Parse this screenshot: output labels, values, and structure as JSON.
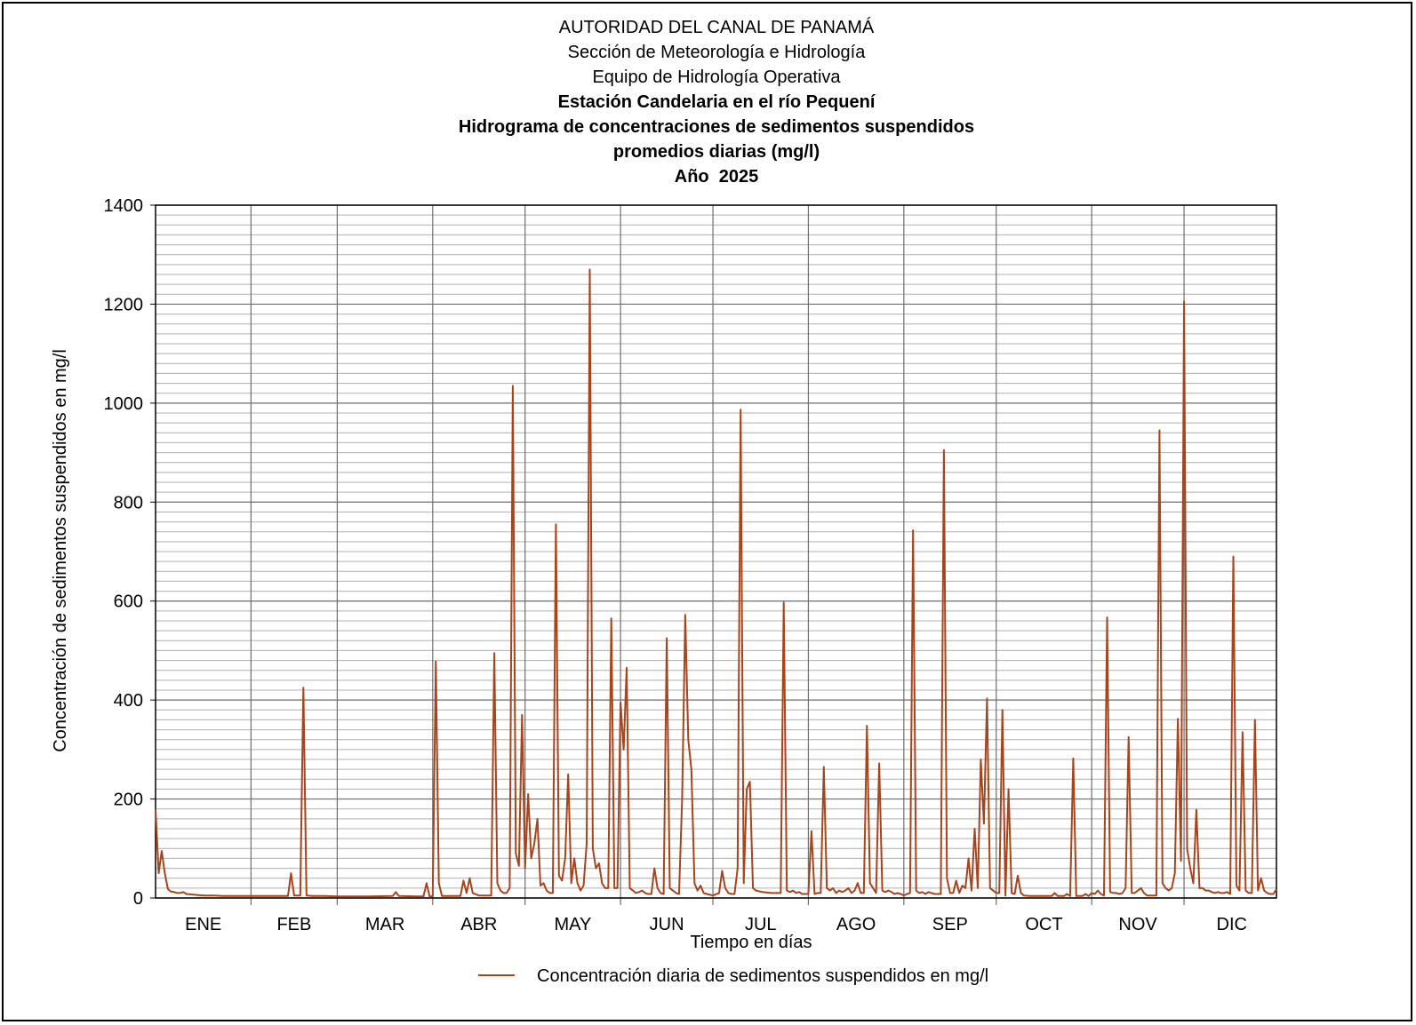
{
  "titles": [
    "AUTORIDAD DEL CANAL DE PANAMÁ",
    "Sección de Meteorología e Hidrología",
    "Equipo de Hidrología Operativa",
    "Estación Candelaria en el río Pequení",
    "Hidrograma de concentraciones de sedimentos suspendidos",
    "promedios diarias (mg/l)",
    "Año  2025"
  ],
  "chart_data": {
    "type": "line",
    "title": "Hidrograma de concentraciones de sedimentos suspendidos promedios diarias (mg/l)",
    "xlabel": "Tiempo en días",
    "ylabel": "Concentración de sedimentos suspendidos en mg/l",
    "ylim": [
      0,
      1400
    ],
    "xlim": [
      1,
      365
    ],
    "yticks": [
      0,
      200,
      400,
      600,
      800,
      1000,
      1200,
      1400
    ],
    "minor_grid_step": 20,
    "grid": true,
    "legend_position": "bottom-center",
    "month_labels": [
      "ENE",
      "FEB",
      "MAR",
      "ABR",
      "MAY",
      "JUN",
      "JUL",
      "AGO",
      "SEP",
      "OCT",
      "NOV",
      "DIC"
    ],
    "month_starts_day": [
      1,
      32,
      60,
      91,
      121,
      152,
      182,
      213,
      244,
      274,
      305,
      335
    ],
    "series": [
      {
        "name": "Concentración diaria de sedimentos suspendidos en mg/l",
        "color": "#a8441c",
        "points": [
          [
            1,
            180
          ],
          [
            2,
            50
          ],
          [
            3,
            95
          ],
          [
            4,
            50
          ],
          [
            5,
            18
          ],
          [
            6,
            13
          ],
          [
            7,
            12
          ],
          [
            8,
            10
          ],
          [
            9,
            10
          ],
          [
            10,
            12
          ],
          [
            11,
            8
          ],
          [
            13,
            7
          ],
          [
            15,
            6
          ],
          [
            17,
            5
          ],
          [
            20,
            5
          ],
          [
            23,
            4
          ],
          [
            26,
            4
          ],
          [
            30,
            4
          ],
          [
            35,
            4
          ],
          [
            40,
            4
          ],
          [
            44,
            4
          ],
          [
            45,
            50
          ],
          [
            46,
            5
          ],
          [
            47,
            5
          ],
          [
            48,
            5
          ],
          [
            49,
            425
          ],
          [
            50,
            5
          ],
          [
            52,
            4
          ],
          [
            56,
            4
          ],
          [
            60,
            3
          ],
          [
            66,
            3
          ],
          [
            70,
            3
          ],
          [
            78,
            4
          ],
          [
            79,
            12
          ],
          [
            80,
            4
          ],
          [
            86,
            3
          ],
          [
            88,
            3
          ],
          [
            89,
            30
          ],
          [
            90,
            3
          ],
          [
            91,
            3
          ],
          [
            92,
            478
          ],
          [
            93,
            30
          ],
          [
            94,
            4
          ],
          [
            96,
            4
          ],
          [
            98,
            4
          ],
          [
            100,
            4
          ],
          [
            101,
            35
          ],
          [
            102,
            10
          ],
          [
            103,
            40
          ],
          [
            104,
            10
          ],
          [
            106,
            5
          ],
          [
            108,
            5
          ],
          [
            110,
            5
          ],
          [
            111,
            495
          ],
          [
            112,
            30
          ],
          [
            113,
            15
          ],
          [
            114,
            10
          ],
          [
            115,
            10
          ],
          [
            116,
            20
          ],
          [
            117,
            1035
          ],
          [
            118,
            90
          ],
          [
            119,
            65
          ],
          [
            120,
            370
          ],
          [
            121,
            60
          ],
          [
            122,
            210
          ],
          [
            123,
            80
          ],
          [
            124,
            110
          ],
          [
            125,
            160
          ],
          [
            126,
            25
          ],
          [
            127,
            30
          ],
          [
            128,
            15
          ],
          [
            129,
            10
          ],
          [
            130,
            10
          ],
          [
            131,
            755
          ],
          [
            132,
            45
          ],
          [
            133,
            35
          ],
          [
            134,
            80
          ],
          [
            135,
            250
          ],
          [
            136,
            30
          ],
          [
            137,
            80
          ],
          [
            138,
            30
          ],
          [
            139,
            15
          ],
          [
            140,
            25
          ],
          [
            141,
            110
          ],
          [
            142,
            1270
          ],
          [
            143,
            100
          ],
          [
            144,
            60
          ],
          [
            145,
            70
          ],
          [
            146,
            30
          ],
          [
            147,
            20
          ],
          [
            148,
            20
          ],
          [
            149,
            565
          ],
          [
            150,
            20
          ],
          [
            151,
            20
          ],
          [
            152,
            395
          ],
          [
            153,
            300
          ],
          [
            154,
            465
          ],
          [
            155,
            20
          ],
          [
            156,
            15
          ],
          [
            157,
            10
          ],
          [
            158,
            12
          ],
          [
            159,
            15
          ],
          [
            160,
            10
          ],
          [
            161,
            8
          ],
          [
            162,
            8
          ],
          [
            163,
            60
          ],
          [
            164,
            20
          ],
          [
            165,
            10
          ],
          [
            166,
            8
          ],
          [
            167,
            525
          ],
          [
            168,
            20
          ],
          [
            169,
            15
          ],
          [
            170,
            10
          ],
          [
            171,
            8
          ],
          [
            172,
            200
          ],
          [
            173,
            572
          ],
          [
            174,
            320
          ],
          [
            175,
            260
          ],
          [
            176,
            30
          ],
          [
            177,
            15
          ],
          [
            178,
            25
          ],
          [
            179,
            10
          ],
          [
            180,
            8
          ],
          [
            182,
            5
          ],
          [
            184,
            10
          ],
          [
            185,
            55
          ],
          [
            186,
            20
          ],
          [
            187,
            10
          ],
          [
            188,
            8
          ],
          [
            189,
            8
          ],
          [
            190,
            60
          ],
          [
            191,
            987
          ],
          [
            192,
            30
          ],
          [
            193,
            220
          ],
          [
            194,
            235
          ],
          [
            195,
            20
          ],
          [
            196,
            15
          ],
          [
            198,
            12
          ],
          [
            201,
            10
          ],
          [
            204,
            10
          ],
          [
            205,
            597
          ],
          [
            206,
            15
          ],
          [
            207,
            12
          ],
          [
            208,
            15
          ],
          [
            209,
            10
          ],
          [
            210,
            12
          ],
          [
            211,
            8
          ],
          [
            213,
            8
          ],
          [
            214,
            135
          ],
          [
            215,
            8
          ],
          [
            216,
            10
          ],
          [
            217,
            10
          ],
          [
            218,
            265
          ],
          [
            219,
            20
          ],
          [
            220,
            15
          ],
          [
            221,
            20
          ],
          [
            222,
            10
          ],
          [
            223,
            15
          ],
          [
            224,
            12
          ],
          [
            225,
            15
          ],
          [
            226,
            20
          ],
          [
            227,
            10
          ],
          [
            228,
            15
          ],
          [
            229,
            30
          ],
          [
            230,
            10
          ],
          [
            231,
            10
          ],
          [
            232,
            348
          ],
          [
            233,
            30
          ],
          [
            234,
            20
          ],
          [
            235,
            10
          ],
          [
            236,
            272
          ],
          [
            237,
            15
          ],
          [
            238,
            12
          ],
          [
            239,
            15
          ],
          [
            240,
            12
          ],
          [
            241,
            8
          ],
          [
            242,
            10
          ],
          [
            243,
            8
          ],
          [
            244,
            5
          ],
          [
            245,
            8
          ],
          [
            246,
            10
          ],
          [
            247,
            743
          ],
          [
            248,
            15
          ],
          [
            249,
            10
          ],
          [
            250,
            12
          ],
          [
            251,
            8
          ],
          [
            252,
            12
          ],
          [
            253,
            10
          ],
          [
            254,
            8
          ],
          [
            255,
            8
          ],
          [
            256,
            8
          ],
          [
            257,
            905
          ],
          [
            258,
            40
          ],
          [
            259,
            10
          ],
          [
            260,
            10
          ],
          [
            261,
            35
          ],
          [
            262,
            10
          ],
          [
            263,
            25
          ],
          [
            264,
            20
          ],
          [
            265,
            80
          ],
          [
            266,
            15
          ],
          [
            267,
            140
          ],
          [
            268,
            20
          ],
          [
            269,
            280
          ],
          [
            270,
            150
          ],
          [
            271,
            403
          ],
          [
            272,
            20
          ],
          [
            273,
            15
          ],
          [
            274,
            10
          ],
          [
            275,
            10
          ],
          [
            276,
            380
          ],
          [
            277,
            5
          ],
          [
            278,
            220
          ],
          [
            279,
            10
          ],
          [
            280,
            8
          ],
          [
            281,
            45
          ],
          [
            282,
            10
          ],
          [
            283,
            5
          ],
          [
            285,
            4
          ],
          [
            288,
            4
          ],
          [
            292,
            4
          ],
          [
            293,
            10
          ],
          [
            294,
            4
          ],
          [
            296,
            4
          ],
          [
            297,
            8
          ],
          [
            298,
            4
          ],
          [
            299,
            282
          ],
          [
            300,
            4
          ],
          [
            301,
            4
          ],
          [
            302,
            4
          ],
          [
            303,
            8
          ],
          [
            304,
            4
          ],
          [
            305,
            10
          ],
          [
            306,
            8
          ],
          [
            307,
            15
          ],
          [
            308,
            8
          ],
          [
            309,
            5
          ],
          [
            310,
            567
          ],
          [
            311,
            12
          ],
          [
            312,
            10
          ],
          [
            313,
            10
          ],
          [
            314,
            8
          ],
          [
            315,
            10
          ],
          [
            316,
            20
          ],
          [
            317,
            325
          ],
          [
            318,
            10
          ],
          [
            319,
            10
          ],
          [
            320,
            15
          ],
          [
            321,
            20
          ],
          [
            322,
            10
          ],
          [
            323,
            5
          ],
          [
            325,
            5
          ],
          [
            326,
            5
          ],
          [
            327,
            945
          ],
          [
            328,
            30
          ],
          [
            329,
            20
          ],
          [
            330,
            15
          ],
          [
            331,
            20
          ],
          [
            332,
            50
          ],
          [
            333,
            362
          ],
          [
            334,
            75
          ],
          [
            335,
            1205
          ],
          [
            336,
            100
          ],
          [
            337,
            60
          ],
          [
            338,
            30
          ],
          [
            339,
            178
          ],
          [
            340,
            20
          ],
          [
            341,
            20
          ],
          [
            342,
            15
          ],
          [
            343,
            15
          ],
          [
            344,
            12
          ],
          [
            345,
            10
          ],
          [
            346,
            12
          ],
          [
            347,
            10
          ],
          [
            348,
            10
          ],
          [
            349,
            12
          ],
          [
            350,
            8
          ],
          [
            351,
            690
          ],
          [
            352,
            25
          ],
          [
            353,
            15
          ],
          [
            354,
            335
          ],
          [
            355,
            15
          ],
          [
            356,
            10
          ],
          [
            357,
            10
          ],
          [
            358,
            360
          ],
          [
            359,
            15
          ],
          [
            360,
            40
          ],
          [
            361,
            15
          ],
          [
            362,
            10
          ],
          [
            363,
            8
          ],
          [
            364,
            8
          ],
          [
            365,
            18
          ]
        ]
      }
    ]
  }
}
